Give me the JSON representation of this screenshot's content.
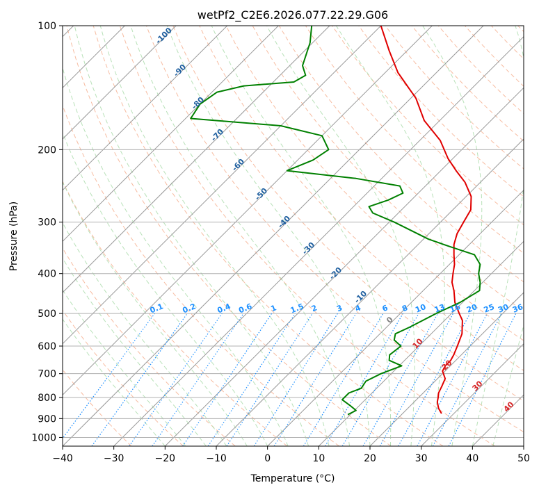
{
  "chart_data": {
    "type": "skew-t",
    "title": "wetPf2_C2E6.2026.077.22.29.G06",
    "xlabel": "Temperature (°C)",
    "ylabel": "Pressure (hPa)",
    "xlim": [
      -40,
      50
    ],
    "ylim_hpa": [
      1050,
      100
    ],
    "log_pressure_axis": true,
    "grid": true,
    "x_ticks": [
      "−40",
      "−30",
      "−20",
      "−10",
      "0",
      "10",
      "20",
      "30",
      "40",
      "50"
    ],
    "x_tick_values": [
      -40,
      -30,
      -20,
      -10,
      0,
      10,
      20,
      30,
      40,
      50
    ],
    "y_ticks": [
      "100",
      "200",
      "300",
      "400",
      "500",
      "600",
      "700",
      "800",
      "900",
      "1000"
    ],
    "y_tick_values": [
      100,
      200,
      300,
      400,
      500,
      600,
      700,
      800,
      900,
      1000
    ],
    "series": [
      {
        "color": "#e00000",
        "role": "temperature",
        "points": [
          [
            875,
            27.6
          ],
          [
            850,
            26.0
          ],
          [
            820,
            24.5
          ],
          [
            800,
            23.8
          ],
          [
            780,
            23.0
          ],
          [
            750,
            22.3
          ],
          [
            720,
            21.5
          ],
          [
            690,
            19.5
          ],
          [
            670,
            19.0
          ],
          [
            650,
            19.0
          ],
          [
            630,
            18.5
          ],
          [
            600,
            17.5
          ],
          [
            560,
            16.0
          ],
          [
            520,
            13.5
          ],
          [
            500,
            11.5
          ],
          [
            470,
            8.5
          ],
          [
            440,
            6.0
          ],
          [
            420,
            4.0
          ],
          [
            400,
            2.5
          ],
          [
            380,
            1.0
          ],
          [
            360,
            -1.0
          ],
          [
            340,
            -3.0
          ],
          [
            320,
            -4.5
          ],
          [
            300,
            -5.5
          ],
          [
            280,
            -6.5
          ],
          [
            260,
            -9.0
          ],
          [
            240,
            -13.0
          ],
          [
            225,
            -17.0
          ],
          [
            210,
            -21.0
          ],
          [
            190,
            -26.0
          ],
          [
            170,
            -33.0
          ],
          [
            150,
            -39.0
          ],
          [
            130,
            -47.5
          ],
          [
            115,
            -53.5
          ],
          [
            100,
            -60.0
          ]
        ]
      },
      {
        "color": "#008000",
        "role": "dewpoint",
        "points": [
          [
            880,
            9.5
          ],
          [
            860,
            10.3
          ],
          [
            840,
            8.5
          ],
          [
            810,
            5.5
          ],
          [
            780,
            5.5
          ],
          [
            760,
            7.0
          ],
          [
            730,
            6.5
          ],
          [
            700,
            8.0
          ],
          [
            670,
            10.5
          ],
          [
            650,
            7.0
          ],
          [
            630,
            6.0
          ],
          [
            600,
            6.5
          ],
          [
            580,
            4.0
          ],
          [
            560,
            3.0
          ],
          [
            540,
            4.5
          ],
          [
            500,
            7.0
          ],
          [
            470,
            9.5
          ],
          [
            440,
            11.0
          ],
          [
            420,
            9.5
          ],
          [
            400,
            7.5
          ],
          [
            380,
            6.0
          ],
          [
            360,
            3.0
          ],
          [
            345,
            -3.0
          ],
          [
            330,
            -9.0
          ],
          [
            300,
            -19.0
          ],
          [
            285,
            -25.0
          ],
          [
            275,
            -27.0
          ],
          [
            265,
            -24.5
          ],
          [
            255,
            -23.0
          ],
          [
            245,
            -25.0
          ],
          [
            235,
            -35.0
          ],
          [
            225,
            -50.0
          ],
          [
            212,
            -47.0
          ],
          [
            200,
            -46.0
          ],
          [
            185,
            -50.0
          ],
          [
            175,
            -60.0
          ],
          [
            168,
            -79.0
          ],
          [
            155,
            -80.0
          ],
          [
            145,
            -79.0
          ],
          [
            140,
            -75.0
          ],
          [
            137,
            -66.0
          ],
          [
            132,
            -65.0
          ],
          [
            125,
            -67.5
          ],
          [
            110,
            -70.5
          ],
          [
            100,
            -73.5
          ]
        ]
      }
    ],
    "isotherm_labels": [
      {
        "text": "-100",
        "value": -100
      },
      {
        "text": "-90",
        "value": -90
      },
      {
        "text": "-80",
        "value": -80
      },
      {
        "text": "-70",
        "value": -70
      },
      {
        "text": "-60",
        "value": -60
      },
      {
        "text": "-50",
        "value": -50
      },
      {
        "text": "-40",
        "value": -40
      },
      {
        "text": "-30",
        "value": -30
      },
      {
        "text": "-20",
        "value": -20
      },
      {
        "text": "-10",
        "value": -10
      },
      {
        "text": "0",
        "value": 0
      },
      {
        "text": "10",
        "value": 10
      },
      {
        "text": "20",
        "value": 20
      },
      {
        "text": "30",
        "value": 30
      },
      {
        "text": "40",
        "value": 40
      }
    ],
    "mixing_ratio_labels": [
      "0.1",
      "0.2",
      "0.4",
      "0.6",
      "1",
      "1.5",
      "2",
      "3",
      "4",
      "6",
      "8",
      "10",
      "13",
      "16",
      "20",
      "25",
      "30",
      "36"
    ],
    "mixing_ratio_values": [
      0.1,
      0.2,
      0.4,
      0.6,
      1,
      1.5,
      2,
      3,
      4,
      6,
      8,
      10,
      13,
      16,
      20,
      25,
      30,
      36
    ],
    "colors": {
      "temperature": "#e00000",
      "dewpoint": "#008000",
      "isotherm_cold": "#1f5f9f",
      "isotherm_zero": "#808080",
      "isotherm_warm": "#d62728",
      "mixing_ratio": "#1E90FF",
      "dry_adiabat": "#f4a582",
      "moist_adiabat": "#a6d9a6",
      "skew_grid": "#999999"
    }
  }
}
